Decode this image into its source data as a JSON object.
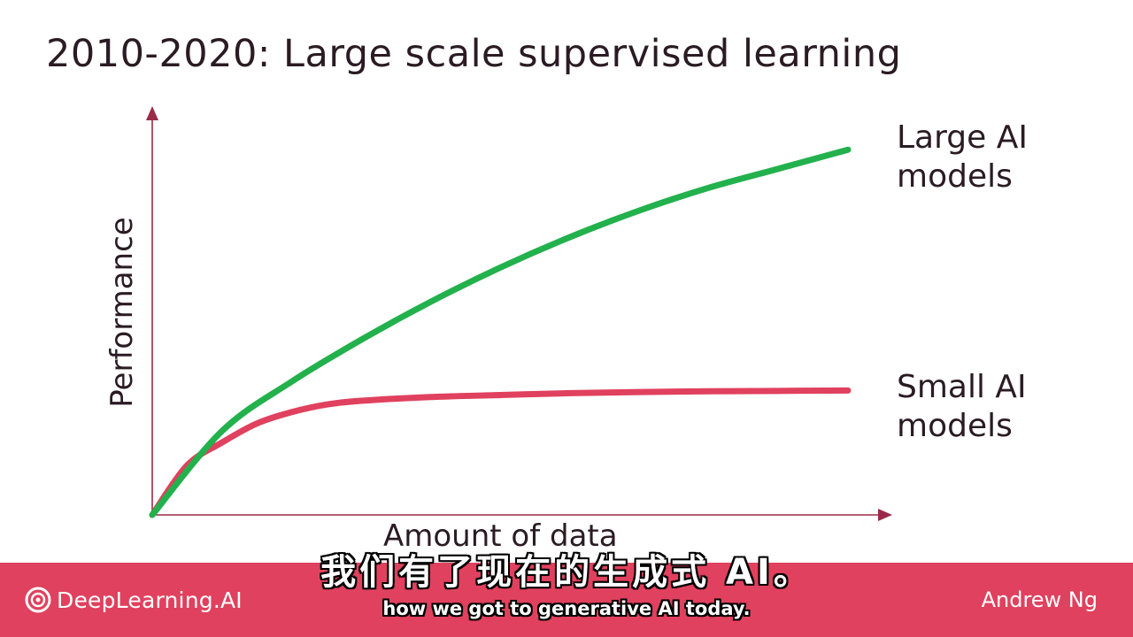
{
  "slide": {
    "title": "2010-2020: Large scale supervised learning"
  },
  "chart_data": {
    "type": "line",
    "xlabel": "Amount of data",
    "ylabel": "Performance",
    "axis_color": "#9b2a48",
    "grid": false,
    "legend": "right",
    "series": [
      {
        "name": "Large AI\nmodels",
        "color": "#22b14c",
        "x": [
          0,
          0.1,
          0.2,
          0.3,
          0.4,
          0.5,
          0.6,
          0.7,
          0.8,
          0.9,
          1.0
        ],
        "y": [
          0,
          0.22,
          0.35,
          0.46,
          0.56,
          0.65,
          0.73,
          0.8,
          0.86,
          0.91,
          0.96
        ]
      },
      {
        "name": "Small AI\nmodels",
        "color": "#e0415e",
        "x": [
          0,
          0.05,
          0.1,
          0.15,
          0.2,
          0.25,
          0.3,
          0.4,
          0.5,
          0.6,
          0.7,
          0.8,
          0.9,
          1.0
        ],
        "y": [
          0,
          0.13,
          0.19,
          0.24,
          0.27,
          0.29,
          0.3,
          0.31,
          0.315,
          0.32,
          0.323,
          0.325,
          0.326,
          0.327
        ]
      }
    ]
  },
  "footer": {
    "brand": "DeepLearning.AI",
    "author": "Andrew Ng",
    "background": "#e0415e",
    "brand_icon": "deeplearning-logo-icon"
  },
  "captions": {
    "zh": "我们有了现在的生成式 AI。",
    "en": "how we got to generative AI today."
  }
}
